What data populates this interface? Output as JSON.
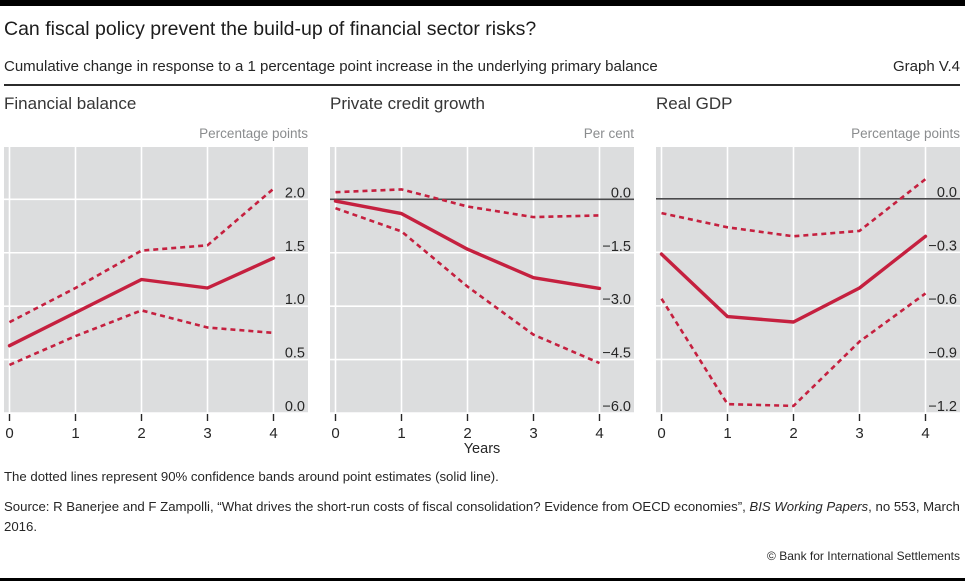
{
  "header": {
    "title": "Can fiscal policy prevent the build-up of financial sector risks?",
    "subtitle": "Cumulative change in response to a 1 percentage point increase in the underlying primary balance",
    "graph_label": "Graph V.4"
  },
  "colors": {
    "accent_red": "#c5203f",
    "plot_bg": "#dcddde",
    "zero_line": "#4a4a4c",
    "gridline": "#ffffff",
    "tick": "#262626"
  },
  "xlabel": "Years",
  "footnote": "The dotted lines represent 90% confidence bands around point estimates (solid line).",
  "source": {
    "prefix": "Source: R Banerjee and F Zampolli, “What drives the short-run costs of fiscal consolidation? Evidence from OECD economies”, ",
    "italic": "BIS Working Papers",
    "suffix": ", no 553, March 2016."
  },
  "copyright": "© Bank for International Settlements",
  "chart_data": [
    {
      "type": "line",
      "title": "Financial balance",
      "unit": "Percentage points",
      "x_tick_labels": [
        "0",
        "1",
        "2",
        "3",
        "4"
      ],
      "x": [
        0,
        1,
        2,
        3,
        4
      ],
      "series": [
        {
          "name": "upper 90% confidence band",
          "style": "dashed",
          "values": [
            0.85,
            1.17,
            1.52,
            1.57,
            2.1
          ]
        },
        {
          "name": "lower 90% confidence band",
          "style": "dashed",
          "values": [
            0.45,
            0.72,
            0.96,
            0.8,
            0.75
          ]
        },
        {
          "name": "point estimate",
          "style": "solid",
          "values": [
            0.63,
            0.94,
            1.25,
            1.17,
            1.45
          ]
        }
      ],
      "ylim": [
        0.0,
        2.49
      ],
      "yticks": [
        {
          "value": 2.0,
          "label": "2.0"
        },
        {
          "value": 1.5,
          "label": "1.5"
        },
        {
          "value": 1.0,
          "label": "1.0"
        },
        {
          "value": 0.5,
          "label": "0.5"
        },
        {
          "value": 0.0,
          "label": "0.0"
        }
      ],
      "zero_line": false,
      "grid": true,
      "legend_position": "none"
    },
    {
      "type": "line",
      "title": "Private credit growth",
      "unit": "Per cent",
      "x_tick_labels": [
        "0",
        "1",
        "2",
        "3",
        "4"
      ],
      "x": [
        0,
        1,
        2,
        3,
        4
      ],
      "series": [
        {
          "name": "upper 90% confidence band",
          "style": "dashed",
          "values": [
            0.2,
            0.28,
            -0.2,
            -0.5,
            -0.45
          ]
        },
        {
          "name": "lower 90% confidence band",
          "style": "dashed",
          "values": [
            -0.25,
            -0.9,
            -2.45,
            -3.8,
            -4.6
          ]
        },
        {
          "name": "point estimate",
          "style": "solid",
          "values": [
            -0.05,
            -0.4,
            -1.4,
            -2.2,
            -2.5
          ]
        }
      ],
      "ylim": [
        -6.0,
        1.47
      ],
      "yticks": [
        {
          "value": 0.0,
          "label": "0.0"
        },
        {
          "value": -1.5,
          "label": "−1.5"
        },
        {
          "value": -3.0,
          "label": "−3.0"
        },
        {
          "value": -4.5,
          "label": "−4.5"
        },
        {
          "value": -6.0,
          "label": "−6.0"
        }
      ],
      "zero_line": true,
      "grid": true,
      "legend_position": "none"
    },
    {
      "type": "line",
      "title": "Real GDP",
      "unit": "Percentage points",
      "x_tick_labels": [
        "0",
        "1",
        "2",
        "3",
        "4"
      ],
      "x": [
        0,
        1,
        2,
        3,
        4
      ],
      "series": [
        {
          "name": "upper 90% confidence band",
          "style": "dashed",
          "values": [
            -0.08,
            -0.16,
            -0.21,
            -0.18,
            0.11
          ]
        },
        {
          "name": "lower 90% confidence band",
          "style": "dashed",
          "values": [
            -0.56,
            -1.15,
            -1.16,
            -0.8,
            -0.53
          ]
        },
        {
          "name": "point estimate",
          "style": "solid",
          "values": [
            -0.31,
            -0.66,
            -0.69,
            -0.5,
            -0.21
          ]
        }
      ],
      "ylim": [
        -1.2,
        0.29
      ],
      "yticks": [
        {
          "value": 0.0,
          "label": "0.0"
        },
        {
          "value": -0.3,
          "label": "−0.3"
        },
        {
          "value": -0.6,
          "label": "−0.6"
        },
        {
          "value": -0.9,
          "label": "−0.9"
        },
        {
          "value": -1.2,
          "label": "−1.2"
        }
      ],
      "zero_line": true,
      "grid": true,
      "legend_position": "none"
    }
  ]
}
